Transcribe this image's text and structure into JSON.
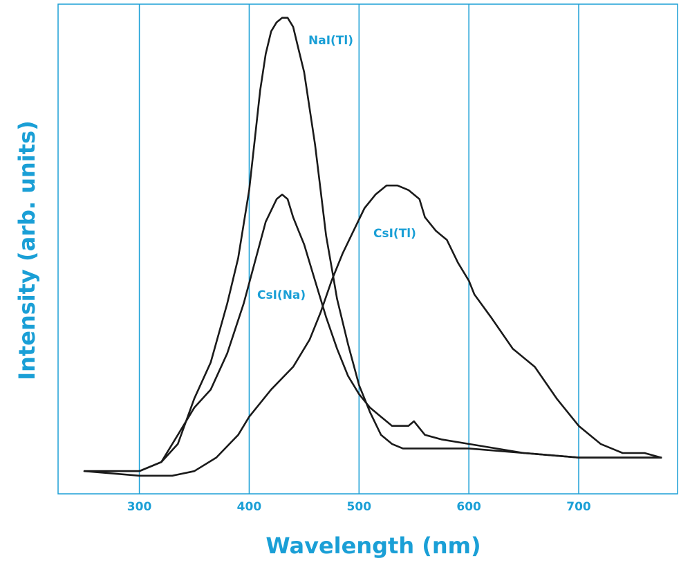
{
  "colors": {
    "accent": "#1a9fd6",
    "curve": "#1a1a1a",
    "background": "#ffffff"
  },
  "chart_data": {
    "type": "line",
    "title": "",
    "xlabel": "Wavelength (nm)",
    "ylabel": "Intensity (arb. units)",
    "xlim": [
      226,
      790
    ],
    "ylim": [
      -0.05,
      1.03
    ],
    "xticks": [
      300,
      400,
      500,
      600,
      700
    ],
    "grid": "vertical",
    "legend": "none",
    "series": [
      {
        "name": "NaI(Tl)",
        "x": [
          250,
          300,
          320,
          335,
          350,
          365,
          380,
          390,
          400,
          405,
          410,
          415,
          420,
          425,
          430,
          435,
          440,
          445,
          450,
          455,
          460,
          465,
          470,
          475,
          480,
          490,
          500,
          510,
          520,
          530,
          540,
          550,
          575,
          600,
          650,
          700,
          750,
          775
        ],
        "y": [
          0.0,
          0.0,
          0.02,
          0.06,
          0.16,
          0.24,
          0.37,
          0.47,
          0.62,
          0.73,
          0.84,
          0.92,
          0.97,
          0.99,
          1.0,
          1.0,
          0.98,
          0.93,
          0.88,
          0.8,
          0.72,
          0.62,
          0.52,
          0.45,
          0.38,
          0.28,
          0.19,
          0.13,
          0.08,
          0.06,
          0.05,
          0.05,
          0.05,
          0.05,
          0.04,
          0.03,
          0.03,
          0.03
        ]
      },
      {
        "name": "CsI(Na)",
        "x": [
          250,
          300,
          320,
          335,
          350,
          365,
          380,
          395,
          405,
          415,
          425,
          430,
          435,
          440,
          445,
          450,
          460,
          470,
          480,
          490,
          500,
          510,
          520,
          530,
          545,
          550,
          560,
          575,
          600,
          650,
          700,
          750,
          775
        ],
        "y": [
          0.0,
          0.0,
          0.02,
          0.08,
          0.14,
          0.18,
          0.26,
          0.37,
          0.46,
          0.55,
          0.6,
          0.61,
          0.6,
          0.56,
          0.53,
          0.5,
          0.42,
          0.34,
          0.27,
          0.21,
          0.17,
          0.14,
          0.12,
          0.1,
          0.1,
          0.11,
          0.08,
          0.07,
          0.06,
          0.04,
          0.03,
          0.03,
          0.03
        ]
      },
      {
        "name": "CsI(Tl)",
        "x": [
          250,
          300,
          330,
          350,
          370,
          390,
          400,
          420,
          440,
          455,
          465,
          475,
          485,
          495,
          505,
          515,
          525,
          535,
          545,
          555,
          560,
          570,
          580,
          590,
          600,
          605,
          620,
          640,
          660,
          680,
          700,
          720,
          740,
          760,
          775
        ],
        "y": [
          0.0,
          -0.01,
          -0.01,
          0.0,
          0.03,
          0.08,
          0.12,
          0.18,
          0.23,
          0.29,
          0.35,
          0.42,
          0.48,
          0.53,
          0.58,
          0.61,
          0.63,
          0.63,
          0.62,
          0.6,
          0.56,
          0.53,
          0.51,
          0.46,
          0.42,
          0.39,
          0.34,
          0.27,
          0.23,
          0.16,
          0.1,
          0.06,
          0.04,
          0.04,
          0.03
        ]
      }
    ]
  }
}
